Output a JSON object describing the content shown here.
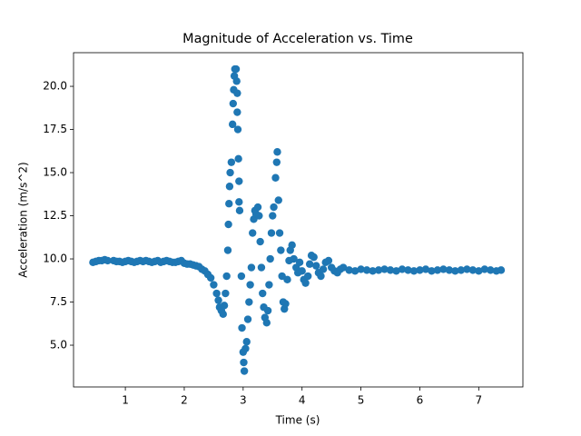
{
  "chart_data": {
    "type": "scatter",
    "title": "Magnitude of Acceleration vs. Time",
    "x_label": "Time (s)",
    "y_label": "Acceleration (m/s^2)",
    "color": "#1f77b4",
    "xlim": [
      0.12,
      7.75
    ],
    "ylim": [
      2.58,
      21.95
    ],
    "xticks": [
      1,
      2,
      3,
      4,
      5,
      6,
      7
    ],
    "yticks": [
      {
        "value": 5,
        "label": "5.0"
      },
      7.5,
      {
        "value": 10,
        "label": "10.0"
      },
      12.5,
      {
        "value": 15,
        "label": "15.0"
      },
      17.5,
      {
        "value": 20,
        "label": "20.0"
      }
    ],
    "x": [
      0.45,
      0.5,
      0.55,
      0.6,
      0.65,
      0.7,
      0.8,
      0.85,
      0.9,
      0.95,
      1.0,
      1.05,
      1.1,
      1.15,
      1.2,
      1.25,
      1.3,
      1.35,
      1.4,
      1.45,
      1.5,
      1.55,
      1.6,
      1.65,
      1.7,
      1.75,
      1.8,
      1.85,
      1.9,
      1.95,
      2.0,
      2.05,
      2.1,
      2.15,
      2.2,
      2.25,
      2.3,
      2.35,
      2.4,
      2.45,
      2.5,
      2.55,
      2.58,
      2.6,
      2.63,
      2.66,
      2.68,
      2.7,
      2.72,
      2.74,
      2.75,
      2.76,
      2.77,
      2.78,
      2.8,
      2.82,
      2.83,
      2.84,
      2.85,
      2.86,
      2.88,
      2.89,
      2.9,
      2.9,
      2.91,
      2.92,
      2.93,
      2.93,
      2.94,
      2.97,
      2.98,
      3.0,
      3.01,
      3.02,
      3.04,
      3.06,
      3.08,
      3.1,
      3.12,
      3.14,
      3.16,
      3.18,
      3.2,
      3.22,
      3.25,
      3.27,
      3.29,
      3.31,
      3.33,
      3.35,
      3.37,
      3.4,
      3.42,
      3.44,
      3.46,
      3.48,
      3.5,
      3.52,
      3.55,
      3.57,
      3.58,
      3.6,
      3.62,
      3.64,
      3.66,
      3.68,
      3.7,
      3.72,
      3.75,
      3.78,
      3.8,
      3.83,
      3.86,
      3.9,
      3.93,
      3.96,
      4.0,
      4.03,
      4.06,
      4.1,
      4.13,
      4.16,
      4.2,
      4.24,
      4.28,
      4.32,
      4.36,
      4.4,
      4.45,
      4.5,
      4.55,
      4.6,
      4.65,
      4.7,
      4.8,
      4.9,
      5.0,
      5.1,
      5.2,
      5.3,
      5.4,
      5.5,
      5.6,
      5.7,
      5.8,
      5.9,
      6.0,
      6.1,
      6.2,
      6.3,
      6.4,
      6.5,
      6.6,
      6.7,
      6.8,
      6.9,
      7.0,
      7.1,
      7.2,
      7.3,
      7.38
    ],
    "y": [
      9.8,
      9.85,
      9.9,
      9.9,
      9.95,
      9.9,
      9.9,
      9.85,
      9.85,
      9.8,
      9.85,
      9.9,
      9.85,
      9.8,
      9.85,
      9.9,
      9.85,
      9.9,
      9.85,
      9.8,
      9.85,
      9.9,
      9.8,
      9.85,
      9.9,
      9.85,
      9.8,
      9.8,
      9.85,
      9.9,
      9.75,
      9.7,
      9.7,
      9.65,
      9.6,
      9.55,
      9.4,
      9.3,
      9.1,
      8.9,
      8.5,
      8.0,
      7.6,
      7.2,
      7.0,
      6.8,
      7.3,
      8.0,
      9.0,
      10.5,
      12.0,
      13.2,
      14.2,
      15.0,
      15.6,
      17.8,
      19.0,
      19.8,
      20.6,
      21.0,
      21.0,
      20.3,
      19.6,
      18.5,
      17.5,
      15.8,
      14.5,
      13.3,
      12.8,
      9.0,
      6.0,
      4.6,
      4.0,
      3.5,
      4.8,
      5.2,
      6.5,
      7.5,
      8.5,
      9.5,
      11.5,
      12.3,
      12.8,
      12.6,
      13.0,
      12.5,
      11.0,
      9.5,
      8.0,
      7.2,
      6.6,
      6.3,
      7.0,
      8.5,
      10.0,
      11.5,
      12.5,
      13.0,
      14.7,
      15.6,
      16.2,
      13.4,
      11.5,
      10.5,
      9.0,
      7.5,
      7.1,
      7.4,
      8.8,
      9.9,
      10.5,
      10.8,
      10.0,
      9.5,
      9.2,
      9.8,
      9.3,
      8.8,
      8.6,
      9.0,
      9.7,
      10.2,
      10.1,
      9.6,
      9.2,
      9.0,
      9.4,
      9.8,
      9.9,
      9.5,
      9.3,
      9.2,
      9.4,
      9.5,
      9.35,
      9.3,
      9.4,
      9.35,
      9.3,
      9.35,
      9.4,
      9.35,
      9.3,
      9.4,
      9.35,
      9.3,
      9.35,
      9.4,
      9.3,
      9.35,
      9.4,
      9.35,
      9.3,
      9.35,
      9.4,
      9.35,
      9.3,
      9.4,
      9.35,
      9.3,
      9.35
    ]
  }
}
